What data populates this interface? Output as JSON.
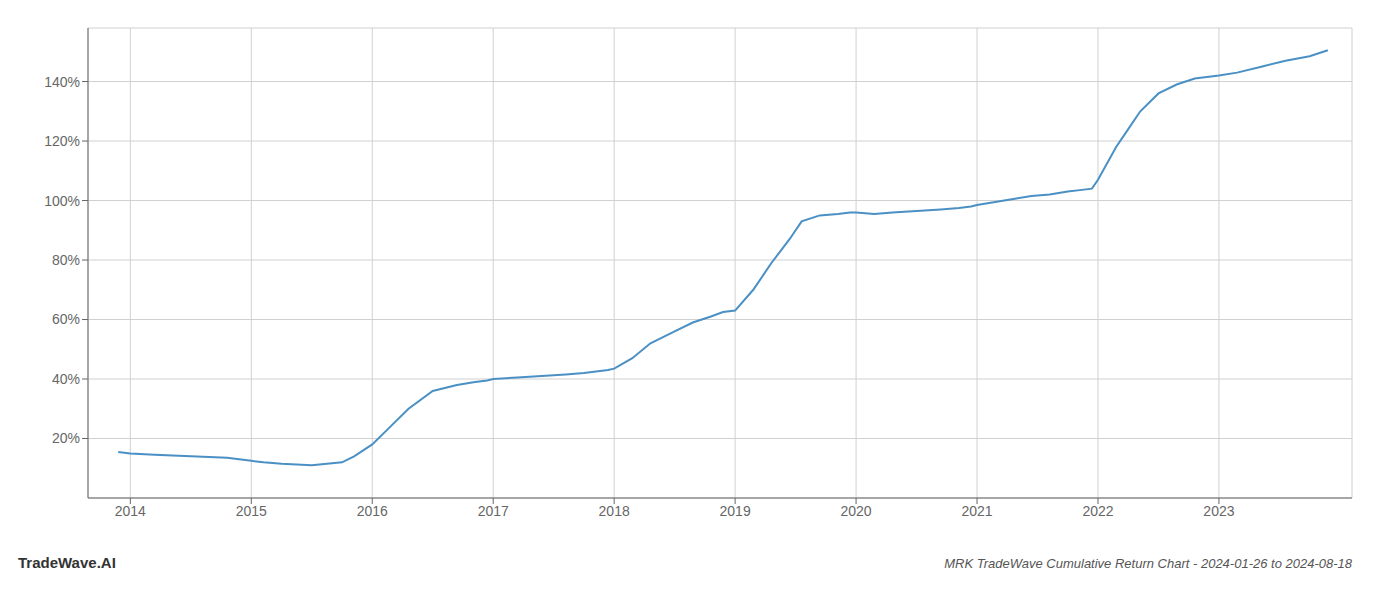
{
  "chart_data": {
    "type": "line",
    "title": "MRK TradeWave Cumulative Return Chart - 2024-01-26 to 2024-08-18",
    "annotations": [
      "TradeWave.AI"
    ],
    "x": [
      2013.9,
      2014.0,
      2014.2,
      2014.5,
      2014.8,
      2015.0,
      2015.1,
      2015.25,
      2015.5,
      2015.75,
      2015.85,
      2016.0,
      2016.15,
      2016.3,
      2016.5,
      2016.7,
      2016.85,
      2016.95,
      2017.0,
      2017.2,
      2017.4,
      2017.6,
      2017.75,
      2017.85,
      2017.95,
      2018.0,
      2018.15,
      2018.3,
      2018.5,
      2018.65,
      2018.8,
      2018.9,
      2019.0,
      2019.15,
      2019.3,
      2019.45,
      2019.55,
      2019.7,
      2019.85,
      2019.95,
      2020.0,
      2020.15,
      2020.3,
      2020.5,
      2020.7,
      2020.85,
      2020.95,
      2021.0,
      2021.15,
      2021.3,
      2021.45,
      2021.6,
      2021.75,
      2021.85,
      2021.95,
      2022.0,
      2022.15,
      2022.25,
      2022.35,
      2022.5,
      2022.65,
      2022.8,
      2022.9,
      2023.0,
      2023.15,
      2023.35,
      2023.55,
      2023.75,
      2023.9
    ],
    "values": [
      15.5,
      15.0,
      14.5,
      14.0,
      13.5,
      12.5,
      12.0,
      11.5,
      11.0,
      12.0,
      14.0,
      18.0,
      24.0,
      30.0,
      36.0,
      38.0,
      39.0,
      39.5,
      40.0,
      40.5,
      41.0,
      41.5,
      42.0,
      42.5,
      43.0,
      43.5,
      47.0,
      52.0,
      56.0,
      59.0,
      61.0,
      62.5,
      63.0,
      70.0,
      79.0,
      87.0,
      93.0,
      95.0,
      95.5,
      96.0,
      96.0,
      95.5,
      96.0,
      96.5,
      97.0,
      97.5,
      98.0,
      98.5,
      99.5,
      100.5,
      101.5,
      102.0,
      103.0,
      103.5,
      104.0,
      107.0,
      118.0,
      124.0,
      130.0,
      136.0,
      139.0,
      141.0,
      141.5,
      142.0,
      143.0,
      145.0,
      147.0,
      148.5,
      150.5
    ],
    "color": "#4a90c4",
    "xlim": [
      2013.65,
      2024.1
    ],
    "ylim": [
      0,
      158
    ],
    "xticks": [
      2014,
      2015,
      2016,
      2017,
      2018,
      2019,
      2020,
      2021,
      2022,
      2023
    ],
    "yticks": [
      {
        "value": 20,
        "label": "20%"
      },
      {
        "value": 40,
        "label": "40%"
      },
      {
        "value": 60,
        "label": "60%"
      },
      {
        "value": 80,
        "label": "80%"
      },
      {
        "value": 100,
        "label": "100%"
      },
      {
        "value": 120,
        "label": "120%"
      },
      {
        "value": 140,
        "label": "140%"
      }
    ],
    "grid": true
  }
}
